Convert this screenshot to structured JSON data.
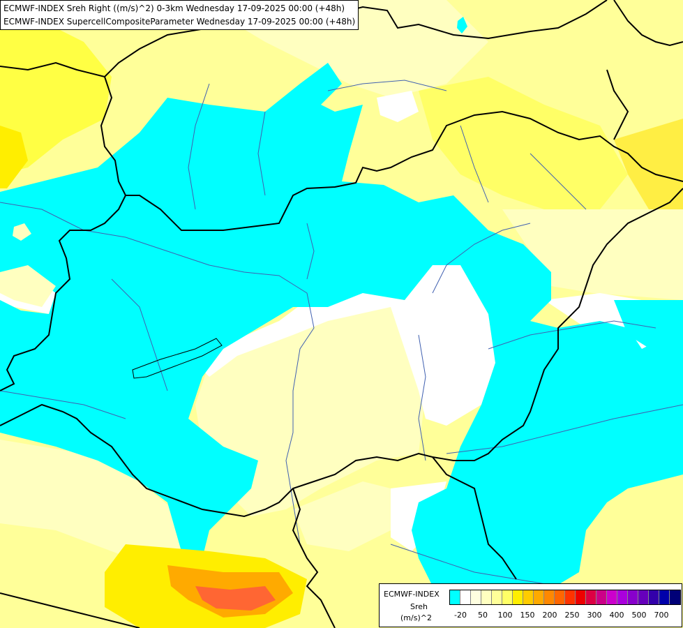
{
  "header": {
    "line1": "ECMWF-INDEX Sreh Right ((m/s)^2) 0-3km Wednesday 17-09-2025 00:00 (+48h)",
    "line2": "ECMWF-INDEX SupercellCompositeParameter Wednesday 17-09-2025 00:00 (+48h)"
  },
  "legend": {
    "title": "ECMWF-INDEX",
    "variable": "Sreh",
    "unit": "(m/s)^2",
    "colors": [
      "#00ffff",
      "#ffffff",
      "#ffffe0",
      "#ffffc0",
      "#ffff99",
      "#ffff66",
      "#ffee00",
      "#ffcc00",
      "#ffaa00",
      "#ff8800",
      "#ff6600",
      "#ff3300",
      "#ee0000",
      "#dd0044",
      "#cc0088",
      "#cc00cc",
      "#aa00dd",
      "#8800cc",
      "#6600bb",
      "#3300aa",
      "#0000aa",
      "#000077"
    ],
    "ticks": [
      "-20",
      "50",
      "100",
      "150",
      "200",
      "250",
      "300",
      "400",
      "500",
      "700"
    ]
  },
  "colors": {
    "cyan": "#00ffff",
    "white": "#ffffff",
    "pale_yellow": "#ffffc0",
    "light_yellow": "#ffff99",
    "yellow": "#ffff66",
    "gold": "#ffee00",
    "orange": "#ffaa00",
    "red_orange": "#ff6633",
    "border": "#000000",
    "river": "#4060b0"
  }
}
